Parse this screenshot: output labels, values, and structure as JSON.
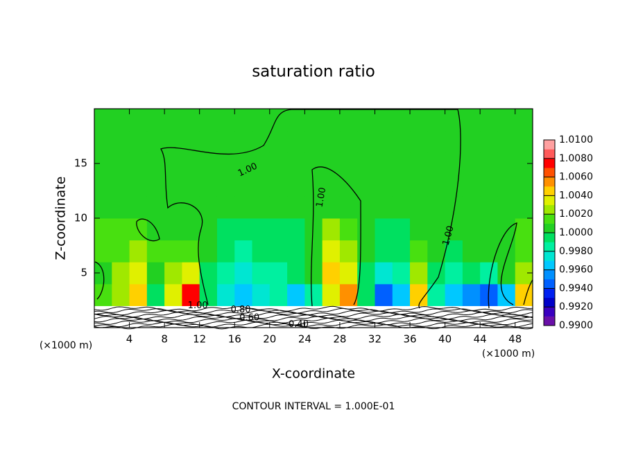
{
  "chart_data": {
    "type": "heatmap",
    "title": "saturation ratio",
    "xlabel": "X-coordinate",
    "ylabel": "Z-coordinate",
    "x_unit": "(×1000 m)",
    "footer": "CONTOUR INTERVAL = 1.000E-01",
    "xlim": [
      0,
      50
    ],
    "ylim": [
      0,
      20
    ],
    "xticks": [
      4,
      8,
      12,
      16,
      20,
      24,
      28,
      32,
      36,
      40,
      44,
      48
    ],
    "yticks": [
      5,
      10,
      15
    ],
    "x": [
      1,
      3,
      5,
      7,
      9,
      11,
      13,
      15,
      17,
      19,
      21,
      23,
      25,
      27,
      29,
      31,
      33,
      35,
      37,
      39,
      41,
      43,
      45,
      47,
      49
    ],
    "y": [
      3,
      5,
      7,
      9,
      11,
      13,
      15,
      17,
      19
    ],
    "z": [
      [
        1.001,
        1.002,
        1.004,
        0.999,
        1.003,
        1.007,
        0.999,
        0.997,
        0.996,
        0.997,
        0.998,
        0.996,
        0.998,
        1.003,
        1.005,
        0.999,
        0.994,
        0.996,
        1.004,
        0.998,
        0.996,
        0.995,
        0.994,
        0.996,
        1.004
      ],
      [
        1.0005,
        1.002,
        1.003,
        1.0,
        1.002,
        1.003,
        0.999,
        0.998,
        0.997,
        0.998,
        0.998,
        0.999,
        1.0,
        1.004,
        1.003,
        0.999,
        0.997,
        0.998,
        1.002,
        0.999,
        0.998,
        0.999,
        0.998,
        1.0,
        1.002
      ],
      [
        1.001,
        1.0015,
        1.002,
        1.001,
        1.001,
        1.001,
        1.0,
        0.999,
        0.998,
        0.999,
        0.999,
        0.999,
        1.0,
        1.003,
        1.002,
        1.0,
        0.999,
        0.999,
        1.001,
        1.0,
        0.999,
        1.0,
        1.0,
        1.0,
        1.001
      ],
      [
        1.001,
        1.001,
        1.001,
        1.0005,
        1.0005,
        1.0005,
        1.0,
        0.9995,
        0.9995,
        0.9995,
        0.9995,
        0.9995,
        1.0,
        1.002,
        1.001,
        1.0,
        0.9995,
        0.9995,
        1.0,
        1.0,
        1.0,
        1.0,
        1.0,
        1.0005,
        1.001
      ],
      [
        1.0008,
        1.0008,
        1.0005,
        1.0005,
        1.0004,
        1.0003,
        1.0002,
        1.0002,
        1.0001,
        1.0001,
        1.0002,
        1.0002,
        1.0003,
        1.0008,
        1.0005,
        1.0002,
        1.0001,
        1.0001,
        1.0003,
        1.0002,
        1.0002,
        1.0003,
        1.0003,
        1.0005,
        1.0005
      ],
      [
        1.0005,
        1.0005,
        1.0004,
        1.0003,
        1.0003,
        1.0002,
        1.0002,
        1.0002,
        1.0002,
        1.0002,
        1.0002,
        1.0002,
        1.0003,
        1.0004,
        1.0003,
        1.0002,
        1.0002,
        1.0002,
        1.0002,
        1.0002,
        1.0002,
        1.0002,
        1.0003,
        1.0003,
        1.0003
      ],
      [
        1.0004,
        1.0004,
        1.0003,
        1.0003,
        1.0002,
        1.0002,
        1.0002,
        1.0002,
        1.0002,
        1.0002,
        1.0002,
        1.0002,
        1.0002,
        1.0003,
        1.0003,
        1.0002,
        1.0002,
        1.0002,
        1.0002,
        1.0002,
        1.0002,
        1.0002,
        1.0002,
        1.0002,
        1.0002
      ],
      [
        1.0003,
        1.0003,
        1.0003,
        1.0002,
        1.0002,
        1.0002,
        1.0002,
        1.0002,
        1.0002,
        1.0002,
        1.0002,
        1.0002,
        1.0002,
        1.0002,
        1.0002,
        1.0002,
        1.0002,
        1.0002,
        1.0002,
        1.0002,
        1.0002,
        1.0002,
        1.0002,
        1.0002,
        1.0002
      ],
      [
        1.0003,
        1.0003,
        1.0002,
        1.0002,
        1.0002,
        1.0002,
        1.0002,
        1.0002,
        1.0002,
        1.0002,
        1.0002,
        1.0002,
        1.0002,
        1.0002,
        1.0002,
        1.0002,
        1.0002,
        1.0002,
        1.0002,
        1.0002,
        1.0002,
        1.0002,
        1.0002,
        1.0002,
        1.0002
      ]
    ],
    "clim": [
      0.99,
      1.01
    ],
    "colormap": [
      "#6a10a8",
      "#3a00c0",
      "#0000c8",
      "#0020f0",
      "#0060ff",
      "#0090ff",
      "#00c8ff",
      "#00e6d2",
      "#00f0a0",
      "#00e060",
      "#22d022",
      "#48e010",
      "#a0e800",
      "#e0f000",
      "#ffd000",
      "#ff9000",
      "#ff5000",
      "#ff0000",
      "#ff5a5a",
      "#ffa0a0"
    ],
    "cticks": [
      {
        "value": 0.99,
        "label": "0.9900"
      },
      {
        "value": 0.992,
        "label": "0.9920"
      },
      {
        "value": 0.994,
        "label": "0.9940"
      },
      {
        "value": 0.996,
        "label": "0.9960"
      },
      {
        "value": 0.998,
        "label": "0.9980"
      },
      {
        "value": 1.0,
        "label": "1.0000"
      },
      {
        "value": 1.002,
        "label": "1.0020"
      },
      {
        "value": 1.004,
        "label": "1.0040"
      },
      {
        "value": 1.006,
        "label": "1.0060"
      },
      {
        "value": 1.008,
        "label": "1.0080"
      },
      {
        "value": 1.01,
        "label": "1.0100"
      }
    ],
    "contour_labels": [
      {
        "label": "1.00",
        "x": 11.8,
        "y": 2.0
      },
      {
        "label": "1.00",
        "x": 17.5,
        "y": 14.4
      },
      {
        "label": "1.00",
        "x": 25.9,
        "y": 11.9
      },
      {
        "label": "1.00",
        "x": 40.4,
        "y": 8.4
      },
      {
        "label": "0.80",
        "x": 16.7,
        "y": 1.6
      },
      {
        "label": "0.60",
        "x": 17.7,
        "y": 0.9
      },
      {
        "label": "0.40",
        "x": 23.3,
        "y": 0.3
      }
    ]
  }
}
